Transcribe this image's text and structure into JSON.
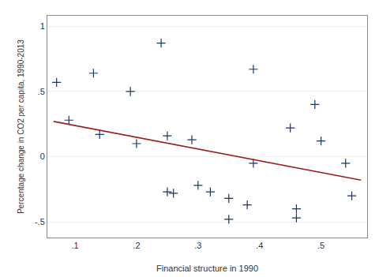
{
  "chart_data": {
    "type": "scatter",
    "xlabel": "Financial structure in 1990",
    "ylabel": "Percentage change in CO2 per capita, 1990-2013",
    "series": [
      {
        "type": "scatter",
        "color": "#1a3464",
        "marker": "plus",
        "x": [
          0.07,
          0.09,
          0.13,
          0.14,
          0.19,
          0.2,
          0.24,
          0.25,
          0.25,
          0.26,
          0.29,
          0.3,
          0.32,
          0.35,
          0.35,
          0.38,
          0.39,
          0.39,
          0.45,
          0.46,
          0.46,
          0.49,
          0.5,
          0.54,
          0.55
        ],
        "values": [
          0.57,
          0.28,
          0.64,
          0.17,
          0.5,
          0.1,
          0.87,
          0.16,
          -0.27,
          -0.28,
          0.13,
          -0.22,
          -0.27,
          -0.32,
          -0.48,
          -0.37,
          0.67,
          -0.05,
          0.22,
          -0.4,
          -0.47,
          0.4,
          0.12,
          -0.05,
          -0.3
        ]
      },
      {
        "type": "line",
        "color": "#9b2020",
        "line_style": "solid",
        "x": [
          0.065,
          0.565
        ],
        "values": [
          0.27,
          -0.18
        ]
      }
    ],
    "xlim": [
      0.055,
      0.575
    ],
    "ylim": [
      -0.62,
      1.08
    ],
    "xticks": [
      {
        "value": 0.1,
        "label": ".1"
      },
      {
        "value": 0.2,
        "label": ".2"
      },
      {
        "value": 0.3,
        "label": ".3"
      },
      {
        "value": 0.4,
        "label": ".4"
      },
      {
        "value": 0.5,
        "label": ".5"
      }
    ],
    "yticks": [
      {
        "value": -0.5,
        "label": "-.5"
      },
      0,
      {
        "value": 0.5,
        "label": ".5"
      },
      1
    ],
    "grid": "y"
  }
}
